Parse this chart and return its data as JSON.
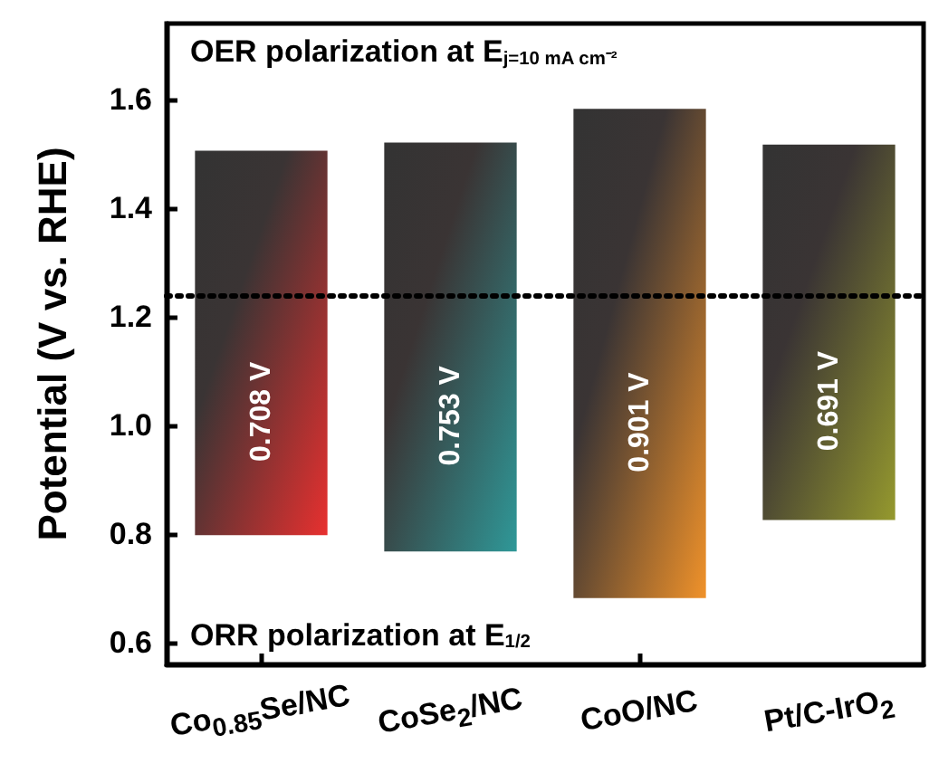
{
  "chart_data": {
    "type": "bar",
    "ylabel": "Potential (V vs. RHE)",
    "categories": [
      "Co$_{0.85}$Se/NC",
      "CoSe$_{2}$/NC",
      "CoO/NC",
      "Pt/C-IrO$_{2}$"
    ],
    "base": [
      0.798,
      0.768,
      0.682,
      0.826
    ],
    "values": [
      0.708,
      0.753,
      0.901,
      0.691
    ],
    "value_labels": [
      "0.708 V",
      "0.753 V",
      "0.901 V",
      "0.691 V"
    ],
    "colors": [
      "#e8302f",
      "#2f9898",
      "#f0922a",
      "#95992e"
    ],
    "ylim": [
      0.56,
      1.74
    ],
    "yticks": [
      0.6,
      0.8,
      {
        "value": 1.0,
        "label": "1.0"
      },
      1.2,
      1.4,
      1.6
    ],
    "grid": false,
    "ref_lines": [
      {
        "axis": "y",
        "value": 1.24,
        "line_style": "dotted",
        "color": "#000000"
      }
    ],
    "annotations": [
      "OER polarization at E$_{j=10 mA cm⁻²}$",
      "ORR polarization at E$_{1/2}$"
    ]
  }
}
